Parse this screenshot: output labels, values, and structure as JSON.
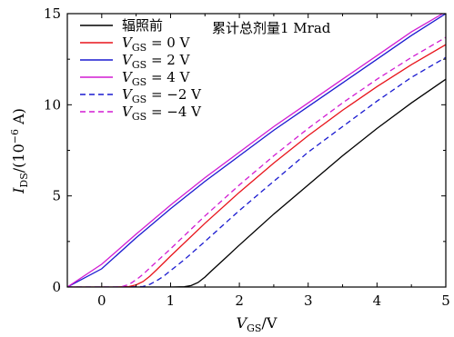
{
  "chart_data": {
    "type": "line",
    "title": "",
    "annotation": "累计总剂量1 Mrad",
    "xlabel": {
      "main": "V",
      "sub": "GS",
      "rest": "/V"
    },
    "ylabel": {
      "main": "I",
      "sub": "DS",
      "rest": "/(10",
      "sup": "−6",
      "end": " A)"
    },
    "xlim": [
      -0.5,
      5
    ],
    "ylim": [
      0,
      15
    ],
    "xticks": [
      0,
      1,
      2,
      3,
      4,
      5
    ],
    "xtick_labels": [
      "0",
      "1",
      "2",
      "3",
      "4",
      "5"
    ],
    "yticks": [
      0,
      5,
      10,
      15
    ],
    "ytick_labels": [
      "0",
      "5",
      "10",
      "15"
    ],
    "grid": false,
    "legend_position": "top-left",
    "series": [
      {
        "name": "辐照前",
        "label_parts": {
          "text": "辐照前"
        },
        "color": "#000000",
        "dash": "solid",
        "x": [
          -0.5,
          0,
          0.5,
          1.0,
          1.2,
          1.3,
          1.4,
          1.5,
          1.6,
          1.8,
          2.0,
          2.5,
          3.0,
          3.5,
          4.0,
          4.5,
          5.0
        ],
        "y": [
          0,
          0,
          0,
          0,
          0.02,
          0.08,
          0.25,
          0.55,
          0.9,
          1.6,
          2.3,
          4.0,
          5.6,
          7.2,
          8.7,
          10.1,
          11.4
        ]
      },
      {
        "name": "VGS = 0 V",
        "label_parts": {
          "main": "V",
          "sub": "GS",
          "rest": " = 0 V"
        },
        "color": "#e8141b",
        "dash": "solid",
        "x": [
          -0.5,
          0,
          0.2,
          0.4,
          0.5,
          0.6,
          0.7,
          0.8,
          1.0,
          1.5,
          2.0,
          2.5,
          3.0,
          3.5,
          4.0,
          4.5,
          5.0
        ],
        "y": [
          0,
          0,
          0,
          0.03,
          0.12,
          0.3,
          0.6,
          0.95,
          1.7,
          3.5,
          5.2,
          6.8,
          8.3,
          9.7,
          11.0,
          12.2,
          13.3
        ]
      },
      {
        "name": "VGS = 2 V",
        "label_parts": {
          "main": "V",
          "sub": "GS",
          "rest": " = 2 V"
        },
        "color": "#1a1ad0",
        "dash": "solid",
        "x": [
          -0.5,
          0,
          0.5,
          1.0,
          1.5,
          2.0,
          2.5,
          3.0,
          3.5,
          4.0,
          4.5,
          5.0
        ],
        "y": [
          0,
          1.0,
          2.7,
          4.3,
          5.8,
          7.2,
          8.6,
          9.9,
          11.2,
          12.5,
          13.8,
          15.0
        ]
      },
      {
        "name": "VGS = 4 V",
        "label_parts": {
          "main": "V",
          "sub": "GS",
          "rest": " = 4 V"
        },
        "color": "#d21cd2",
        "dash": "solid",
        "x": [
          -0.5,
          0,
          0.5,
          1.0,
          1.5,
          2.0,
          2.5,
          3.0,
          3.5,
          4.0,
          4.5,
          5.0
        ],
        "y": [
          0,
          1.25,
          2.9,
          4.5,
          6.0,
          7.4,
          8.8,
          10.1,
          11.4,
          12.7,
          14.0,
          15.1
        ]
      },
      {
        "name": "VGS = −2 V",
        "label_parts": {
          "main": "V",
          "sub": "GS",
          "rest": " = −2 V"
        },
        "color": "#1a1ad0",
        "dash": "dashed",
        "x": [
          -0.5,
          0,
          0.4,
          0.6,
          0.7,
          0.8,
          0.9,
          1.0,
          1.2,
          1.5,
          2.0,
          2.5,
          3.0,
          3.5,
          4.0,
          4.5,
          5.0
        ],
        "y": [
          0,
          0,
          0,
          0.03,
          0.15,
          0.35,
          0.6,
          0.9,
          1.5,
          2.5,
          4.2,
          5.8,
          7.4,
          8.8,
          10.2,
          11.5,
          12.6
        ]
      },
      {
        "name": "VGS = −4 V",
        "label_parts": {
          "main": "V",
          "sub": "GS",
          "rest": " = −4 V"
        },
        "color": "#d21cd2",
        "dash": "dashed",
        "x": [
          -0.5,
          0,
          0.2,
          0.3,
          0.4,
          0.5,
          0.6,
          0.8,
          1.0,
          1.5,
          2.0,
          2.5,
          3.0,
          3.5,
          4.0,
          4.5,
          5.0
        ],
        "y": [
          0,
          0,
          0,
          0.03,
          0.15,
          0.4,
          0.7,
          1.4,
          2.1,
          3.9,
          5.6,
          7.2,
          8.7,
          10.1,
          11.4,
          12.6,
          13.7
        ]
      }
    ]
  }
}
